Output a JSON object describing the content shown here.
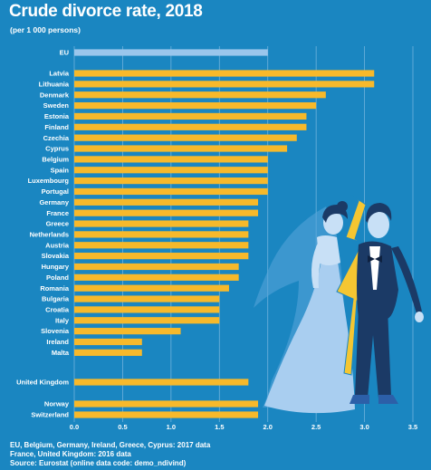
{
  "title": "Crude divorce rate, 2018",
  "subtitle": "(per 1 000 persons)",
  "footnotes": [
    "EU, Belgium, Germany, Ireland, Greece, Cyprus: 2017 data",
    "France, United Kingdom: 2016 data",
    "Source: Eurostat (online data code: demo_ndivind)"
  ],
  "colors": {
    "background": "#1a86c1",
    "bar": "#f7b92b",
    "eu_bar": "#9ac6ec",
    "grid": "#6fb2dc",
    "text": "#ffffff"
  },
  "illustration": "divorcing-couple-illustration",
  "chart_data": {
    "type": "bar",
    "orientation": "horizontal",
    "title": "Crude divorce rate, 2018",
    "subtitle": "(per 1 000 persons)",
    "xlim": [
      0,
      3.5
    ],
    "xticks": [
      "0.0",
      "0.5",
      "1.0",
      "1.5",
      "2.0",
      "2.5",
      "3.0",
      "3.5"
    ],
    "grid": true,
    "categories": [
      "EU",
      "Latvia",
      "Lithuania",
      "Denmark",
      "Sweden",
      "Estonia",
      "Finland",
      "Czechia",
      "Cyprus",
      "Belgium",
      "Spain",
      "Luxembourg",
      "Portugal",
      "Germany",
      "France",
      "Greece",
      "Netherlands",
      "Austria",
      "Slovakia",
      "Hungary",
      "Poland",
      "Romania",
      "Bulgaria",
      "Croatia",
      "Italy",
      "Slovenia",
      "Ireland",
      "Malta",
      "United Kingdom",
      "Norway",
      "Switzerland"
    ],
    "values": [
      2.0,
      3.1,
      3.1,
      2.6,
      2.5,
      2.4,
      2.4,
      2.3,
      2.2,
      2.0,
      2.0,
      2.0,
      2.0,
      1.9,
      1.9,
      1.8,
      1.8,
      1.8,
      1.8,
      1.7,
      1.7,
      1.6,
      1.5,
      1.5,
      1.5,
      1.1,
      0.7,
      0.7,
      1.8,
      1.9,
      1.9
    ]
  }
}
